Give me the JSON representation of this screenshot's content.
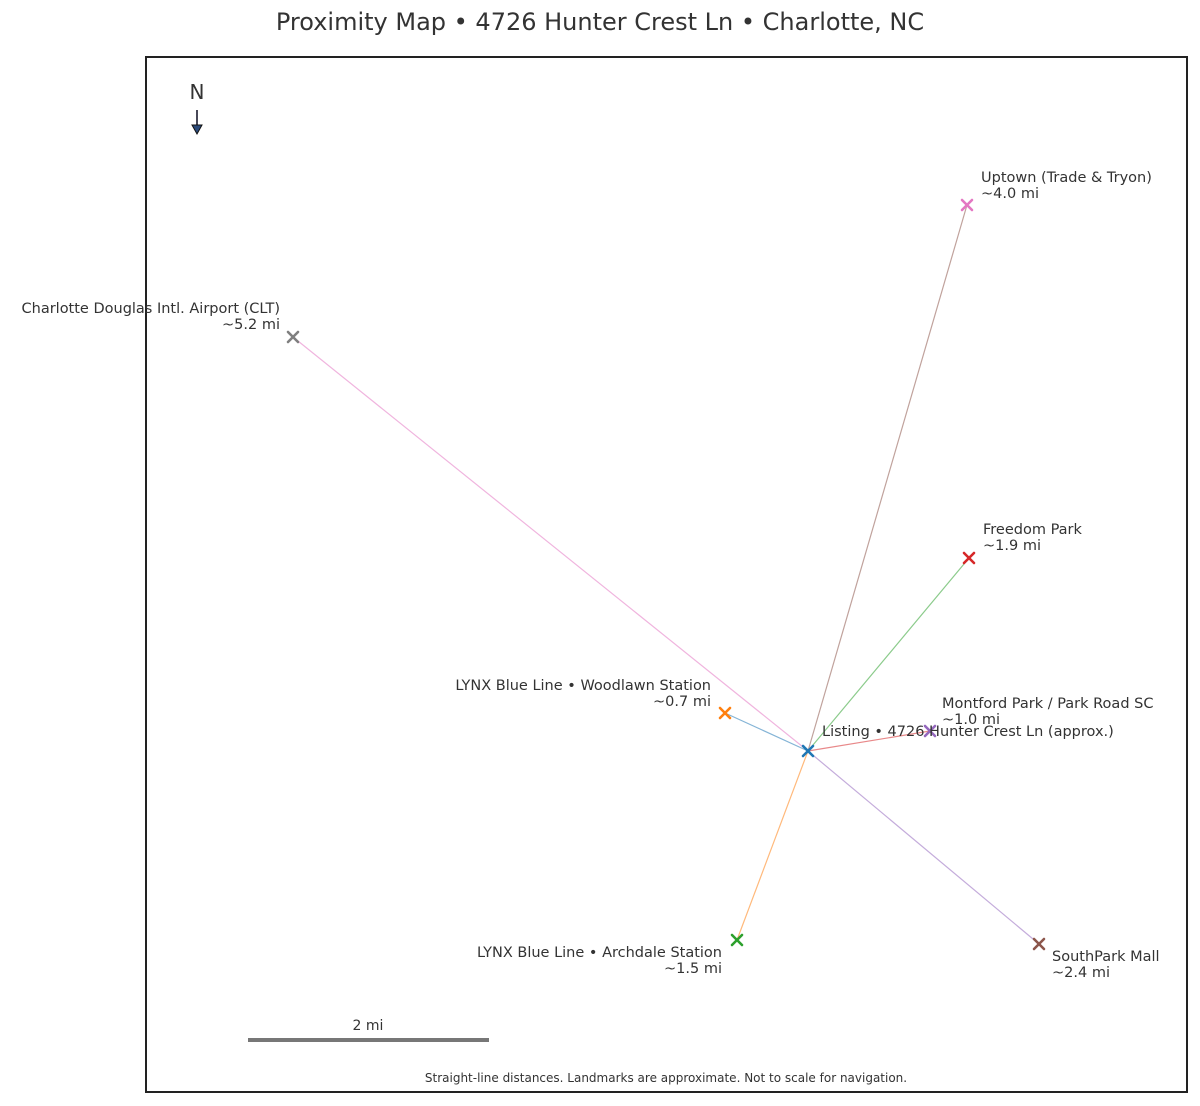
{
  "title": "Proximity Map • 4726 Hunter Crest Ln • Charlotte, NC",
  "north_label": "N",
  "scale_bar_label": "2 mi",
  "footnote": "Straight-line distances. Landmarks are approximate. Not to scale for navigation.",
  "listing": {
    "name": "Listing • 4726 Hunter Crest Ln (approx.)",
    "color": "#1f77b4"
  },
  "landmarks": [
    {
      "id": "woodlawn",
      "name": "LYNX Blue Line • Woodlawn Station",
      "distance": "~0.7 mi",
      "marker_color": "#ff7f0e",
      "line_color": "#1f77b4"
    },
    {
      "id": "montford",
      "name": "Montford Park / Park Road SC",
      "distance": "~1.0 mi",
      "marker_color": "#9467bd",
      "line_color": "#d62728"
    },
    {
      "id": "archdale",
      "name": "LYNX Blue Line • Archdale Station",
      "distance": "~1.5 mi",
      "marker_color": "#2ca02c",
      "line_color": "#ff7f0e"
    },
    {
      "id": "freedom",
      "name": "Freedom Park",
      "distance": "~1.9 mi",
      "marker_color": "#d62728",
      "line_color": "#2ca02c"
    },
    {
      "id": "southpark",
      "name": "SouthPark Mall",
      "distance": "~2.4 mi",
      "marker_color": "#8c564b",
      "line_color": "#9467bd"
    },
    {
      "id": "uptown",
      "name": "Uptown (Trade & Tryon)",
      "distance": "~4.0 mi",
      "marker_color": "#e377c2",
      "line_color": "#8c564b"
    },
    {
      "id": "airport",
      "name": "Charlotte Douglas Intl. Airport (CLT)",
      "distance": "~5.2 mi",
      "marker_color": "#7f7f7f",
      "line_color": "#e377c2"
    }
  ]
}
